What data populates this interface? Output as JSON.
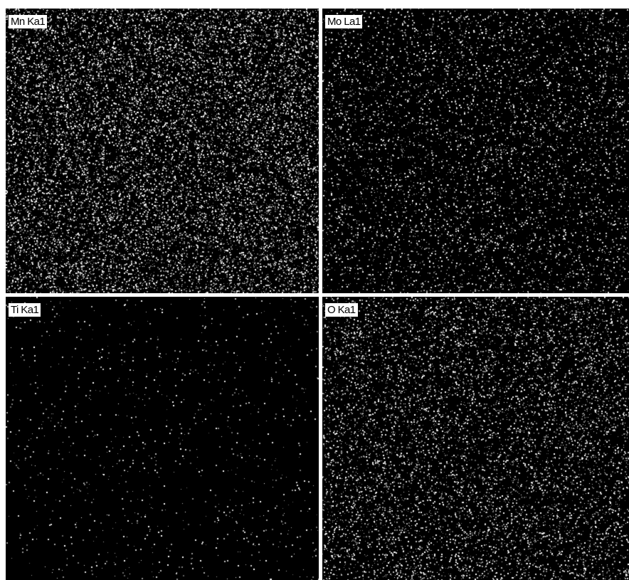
{
  "maps": [
    {
      "element": "Mn",
      "label": "Mn Ka1",
      "color": "#ffffff",
      "density": 0.85
    },
    {
      "element": "Mo",
      "label": "Mo La1",
      "color": "#ffffff",
      "density": 0.35
    },
    {
      "element": "Ti",
      "label": "Ti Ka1",
      "color": "#ffffff",
      "density": 0.06
    },
    {
      "element": "O",
      "label": "O Ka1",
      "color": "#ffffff",
      "density": 0.55
    }
  ],
  "background_color": "#000000",
  "separator_color": "#ffffff"
}
